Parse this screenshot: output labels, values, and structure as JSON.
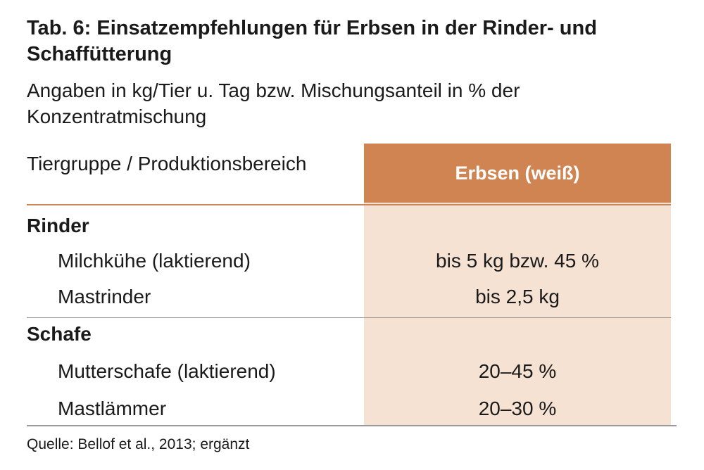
{
  "title": "Tab. 6: Einsatzempfehlungen für Erbsen in der Rinder- und Schaffütterung",
  "subtitle": "Angaben in kg/Tier u. Tag bzw. Mischungsanteil in % der Konzentratmischung",
  "table": {
    "header_label": "Tiergruppe / Produktionsbereich",
    "column_header": "Erbsen (weiß)",
    "groups": [
      {
        "name": "Rinder",
        "rows": [
          {
            "label": "Milchkühe (laktierend)",
            "value": "bis 5 kg bzw. 45 %"
          },
          {
            "label": "Mastrinder",
            "value": "bis 2,5 kg"
          }
        ]
      },
      {
        "name": "Schafe",
        "rows": [
          {
            "label": "Mutterschafe (laktierend)",
            "value": "20–45 %"
          },
          {
            "label": "Mastlämmer",
            "value": "20–30 %"
          }
        ]
      }
    ]
  },
  "source": "Quelle: Bellof et al., 2013; ergänzt",
  "colors": {
    "header_fill": "#cf8452",
    "column_fill": "#f6e2d3",
    "rule": "#9a9a9a"
  }
}
